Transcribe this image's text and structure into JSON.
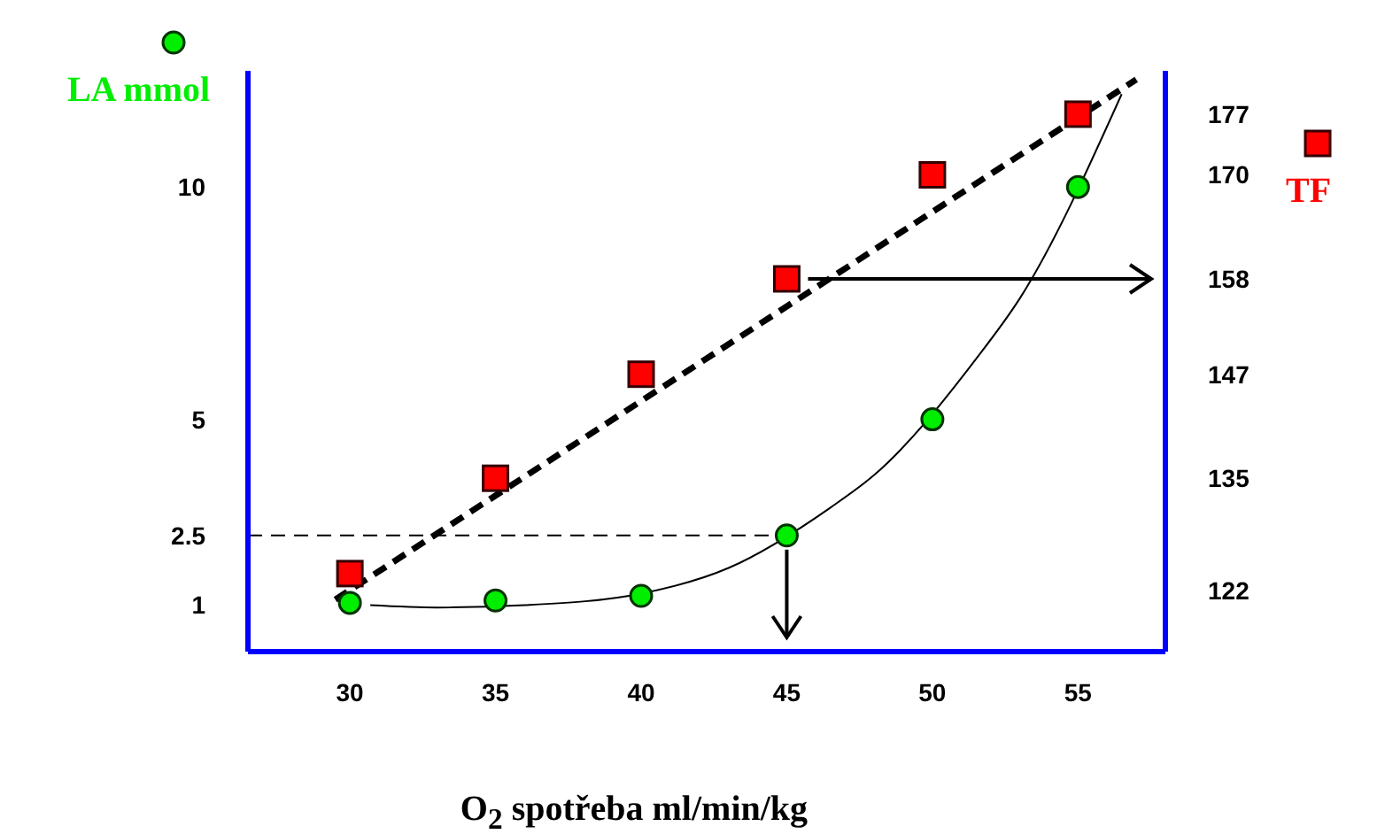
{
  "chart_data": {
    "type": "scatter",
    "xlabel": "O$_{2}$ spotřeba ml/min/kg",
    "x": [
      30,
      35,
      40,
      45,
      50,
      55
    ],
    "xlim": [
      26.5,
      58
    ],
    "xticks": [
      30,
      35,
      40,
      45,
      50,
      55
    ],
    "ylim": [
      0,
      12.5
    ],
    "yticks": [
      1,
      2.5,
      5,
      10
    ],
    "y2lim": [
      115,
      182
    ],
    "y2ticks": [
      122,
      135,
      147,
      158,
      170,
      177
    ],
    "legend": "top",
    "series": [
      {
        "name": "LA mmol",
        "color": "#00ee00",
        "marker": "circle",
        "values": [
          1.05,
          1.1,
          1.2,
          2.5,
          5,
          10
        ]
      },
      {
        "name": "TF",
        "color": "#ff0000",
        "marker": "square",
        "axis": "y2",
        "values": [
          124,
          135,
          147,
          158,
          170,
          177
        ]
      },
      {
        "type": "line",
        "color": "#000000",
        "line_style": "solid",
        "x": [
          30.7,
          33,
          36,
          40,
          43,
          46.5,
          48,
          51.5,
          53,
          56.5
        ],
        "values": [
          1.0,
          0.95,
          1.0,
          1.25,
          1.8,
          3.1,
          3.8,
          6.3,
          7.6,
          12
        ]
      },
      {
        "type": "line",
        "color": "#000000",
        "line_style": "dashed",
        "axis": "y2",
        "x": [
          29.5,
          57
        ],
        "values": [
          121,
          181
        ]
      }
    ],
    "ref_lines": [
      {
        "axis": "y",
        "value": 2.5,
        "color": "#000000",
        "line_style": "dashed"
      }
    ]
  }
}
